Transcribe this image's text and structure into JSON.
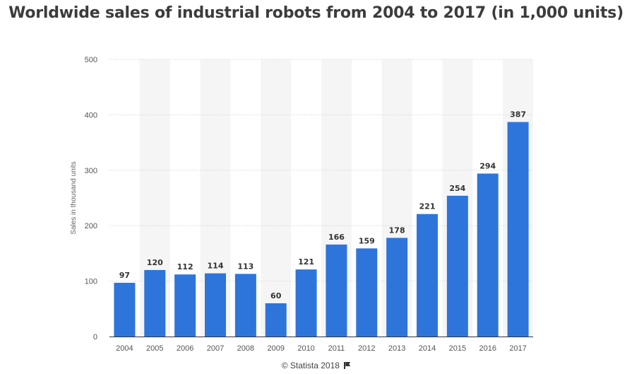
{
  "header": {
    "title": "Worldwide sales of industrial robots from 2004 to 2017 (in 1,000 units)"
  },
  "footer": {
    "credit": "© Statista 2018",
    "icon": "flag-icon"
  },
  "colors": {
    "bar": "#2e75db",
    "band": "#f5f5f5",
    "grid": "#cccccc",
    "axis": "#333333"
  },
  "chart_data": {
    "type": "bar",
    "title": "Worldwide sales of industrial robots from 2004 to 2017 (in 1,000 units)",
    "xlabel": "",
    "ylabel": "Sales in thousand units",
    "categories": [
      "2004",
      "2005",
      "2006",
      "2007",
      "2008",
      "2009",
      "2010",
      "2011",
      "2012",
      "2013",
      "2014",
      "2015",
      "2016",
      "2017"
    ],
    "values": [
      97,
      120,
      112,
      114,
      113,
      60,
      121,
      166,
      159,
      178,
      221,
      254,
      294,
      387
    ],
    "value_labels": [
      "97",
      "120",
      "112",
      "114",
      "113",
      "60",
      "121",
      "166",
      "159",
      "178",
      "221",
      "254",
      "294",
      "387"
    ],
    "ylim": [
      0,
      500
    ],
    "yticks": [
      0,
      100,
      200,
      300,
      400,
      500
    ],
    "ytick_labels": [
      "0",
      "100",
      "200",
      "300",
      "400",
      "500"
    ],
    "grid": true,
    "data_labels": true,
    "legend": "none"
  }
}
